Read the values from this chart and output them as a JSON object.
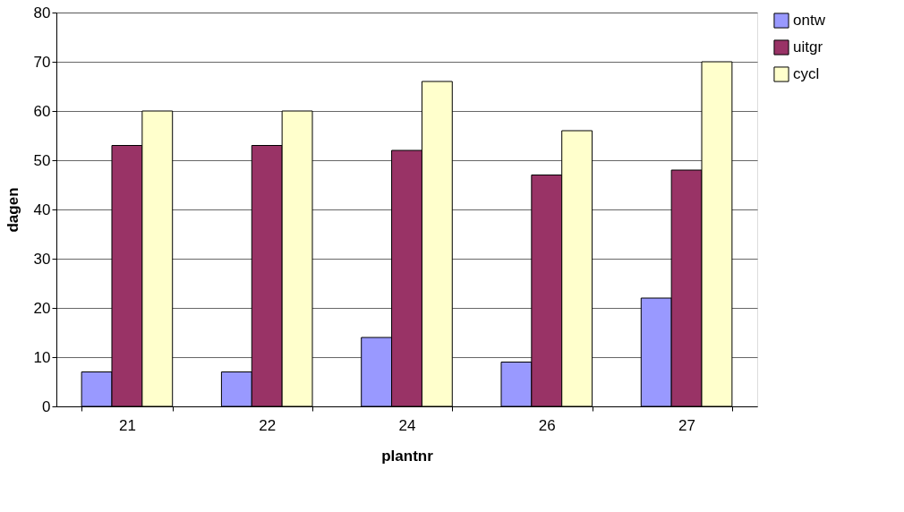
{
  "chart_data": {
    "type": "bar",
    "xlabel": "plantnr",
    "ylabel": "dagen",
    "categories": [
      "21",
      "22",
      "24",
      "26",
      "27"
    ],
    "series": [
      {
        "name": "ontw",
        "color": "#9999ff",
        "values": [
          7,
          7,
          14,
          9,
          22
        ]
      },
      {
        "name": "uitgr",
        "color": "#993366",
        "values": [
          53,
          53,
          52,
          47,
          48
        ]
      },
      {
        "name": "cycl",
        "color": "#ffffcc",
        "values": [
          60,
          60,
          66,
          56,
          70
        ]
      }
    ],
    "ylim": [
      0,
      80
    ],
    "yticks": [
      0,
      10,
      20,
      30,
      40,
      50,
      60,
      70,
      80
    ],
    "grid": "y",
    "legend": "right"
  }
}
